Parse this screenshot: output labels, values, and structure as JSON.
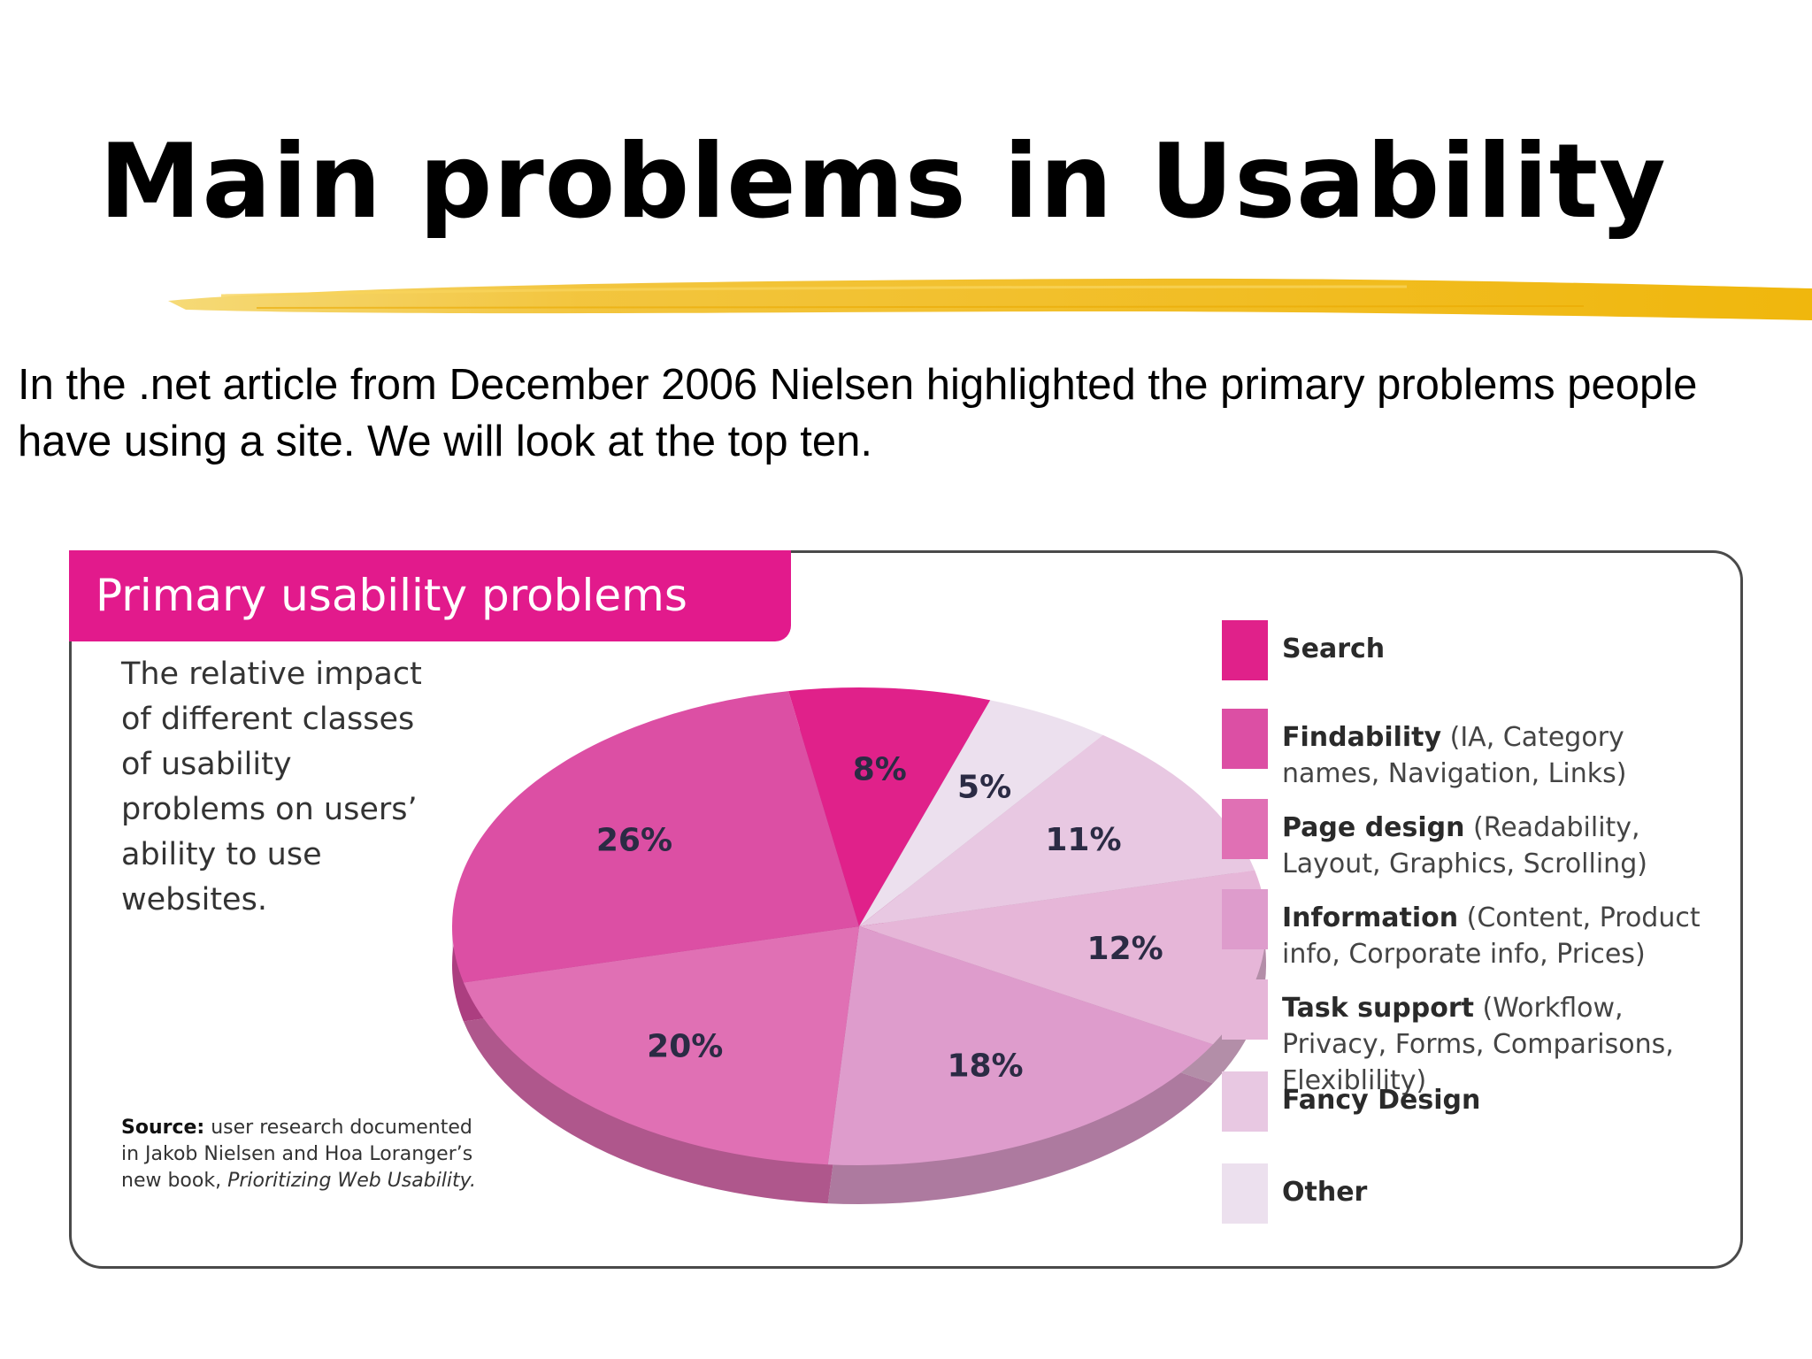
{
  "slide": {
    "title": "Main problems in Usability",
    "intro_line1": "In the .net article from December 2006 Nielsen highlighted the primary problems people",
    "intro_line2": "have using a site.  We will look at the top ten.",
    "accent_color": "#f0b400"
  },
  "figure": {
    "header": "Primary usability problems",
    "caption": "The relative impact of different classes of usability problems on users’ ability to use websites.",
    "source_label": "Source:",
    "source_text": "user research documented in Jakob Nielsen and Hoa Loranger’s new book,",
    "source_book": "Prioritizing Web Usability."
  },
  "chart_data": {
    "type": "pie",
    "title": "Primary usability problems",
    "legend_position": "right",
    "slices": [
      {
        "label": "Search",
        "detail": "",
        "value": 8,
        "value_label": "8%",
        "color": "#e0218a"
      },
      {
        "label": "Other",
        "detail": "",
        "value": 5,
        "value_label": "5%",
        "color": "#ece0ee"
      },
      {
        "label": "Fancy Design",
        "detail": "",
        "value": 11,
        "value_label": "11%",
        "color": "#e8c8e2"
      },
      {
        "label": "Task support",
        "detail": "(Workflow, Privacy, Forms, Comparisons, Flexiblility)",
        "value": 12,
        "value_label": "12%",
        "color": "#e6b6d8"
      },
      {
        "label": "Information",
        "detail": "(Content, Product info, Corporate info, Prices)",
        "value": 18,
        "value_label": "18%",
        "color": "#de9ccc"
      },
      {
        "label": "Page design",
        "detail": "(Readability, Layout, Graphics, Scrolling)",
        "value": 20,
        "value_label": "20%",
        "color": "#e070b4"
      },
      {
        "label": "Findability",
        "detail": "(IA, Category names, Navigation, Links)",
        "value": 26,
        "value_label": "26%",
        "color": "#dc4fa4"
      }
    ],
    "legend_order": [
      "Search",
      "Findability",
      "Page design",
      "Information",
      "Task support",
      "Fancy Design",
      "Other"
    ]
  }
}
